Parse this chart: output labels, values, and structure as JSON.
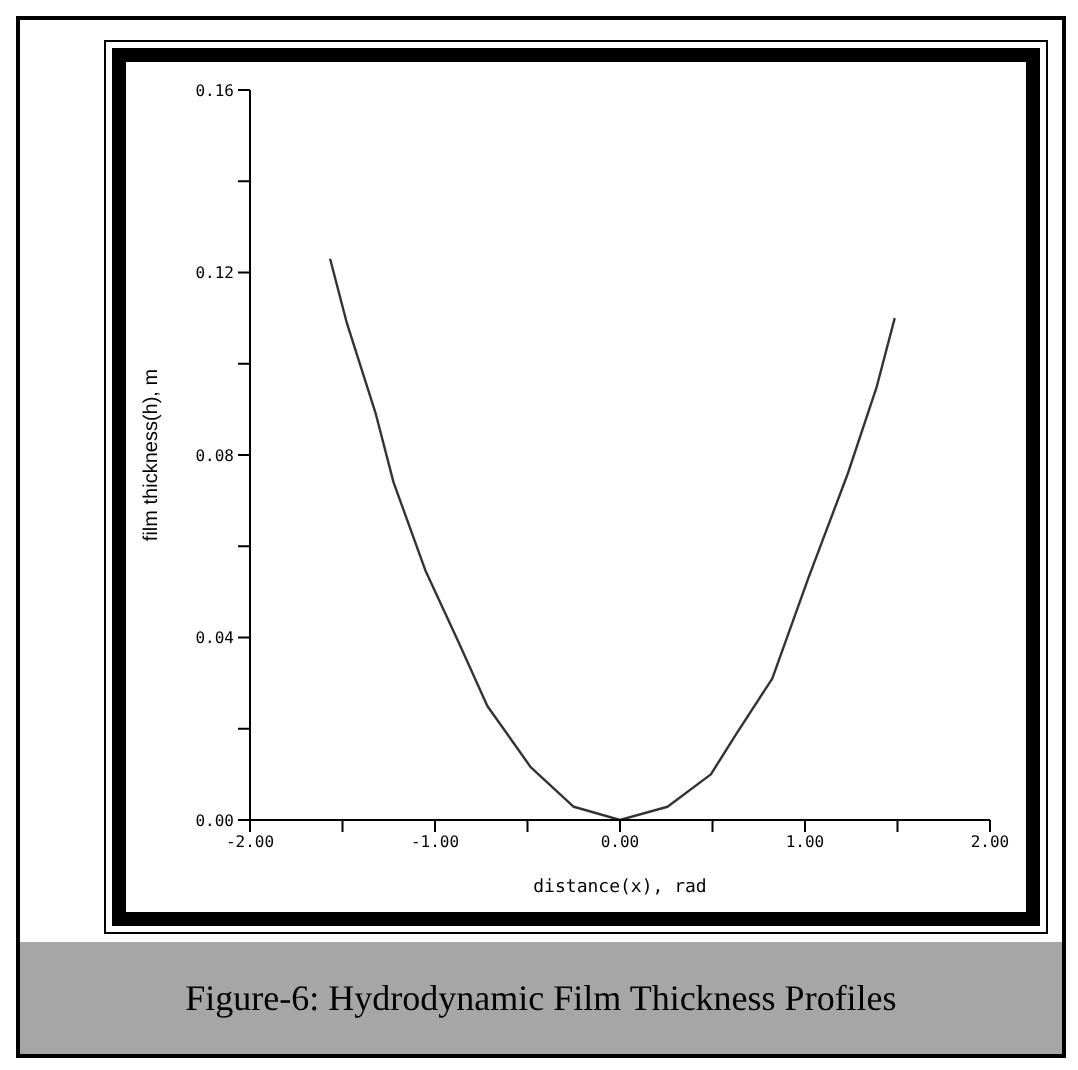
{
  "chart_data": {
    "type": "line",
    "xlabel": "distance(x), rad",
    "ylabel": "film thickness(h), m",
    "x": [
      -1.567,
      -1.477,
      -1.32,
      -1.224,
      -1.05,
      -0.873,
      -0.717,
      -0.483,
      -0.25,
      0,
      0.257,
      0.491,
      0.628,
      0.823,
      1.018,
      1.232,
      1.388,
      1.485
    ],
    "series": [
      {
        "color": "#333333",
        "values": [
          0.123,
          0.109,
          0.089,
          0.074,
          0.0545,
          0.039,
          0.025,
          0.0116,
          0.0029,
          0,
          0.0029,
          0.01,
          0.0188,
          0.031,
          0.053,
          0.076,
          0.095,
          0.11
        ]
      }
    ],
    "xlim": [
      -2,
      2
    ],
    "xticks": [
      {
        "value": -2,
        "label": "-2.00"
      },
      {
        "value": -1.5,
        "label": null
      },
      {
        "value": -1,
        "label": "-1.00"
      },
      {
        "value": -0.5,
        "label": null
      },
      {
        "value": 0,
        "label": "0.00"
      },
      {
        "value": 0.5,
        "label": null
      },
      {
        "value": 1,
        "label": "1.00"
      },
      {
        "value": 1.5,
        "label": null
      },
      {
        "value": 2,
        "label": "2.00"
      }
    ],
    "ylim": [
      0,
      0.16
    ],
    "yticks": [
      {
        "value": 0,
        "label": "0.00"
      },
      {
        "value": 0.02,
        "label": null
      },
      {
        "value": 0.04,
        "label": "0.04"
      },
      {
        "value": 0.06,
        "label": null
      },
      {
        "value": 0.08,
        "label": "0.08"
      },
      {
        "value": 0.1,
        "label": null
      },
      {
        "value": 0.12,
        "label": "0.12"
      },
      {
        "value": 0.14,
        "label": null
      },
      {
        "value": 0.16,
        "label": "0.16"
      }
    ],
    "grid": false,
    "legend": false,
    "marker": "none",
    "line_style": "solid",
    "annotations": [
      "Figure-6: Hydrodynamic Film Thickness Profiles"
    ]
  }
}
